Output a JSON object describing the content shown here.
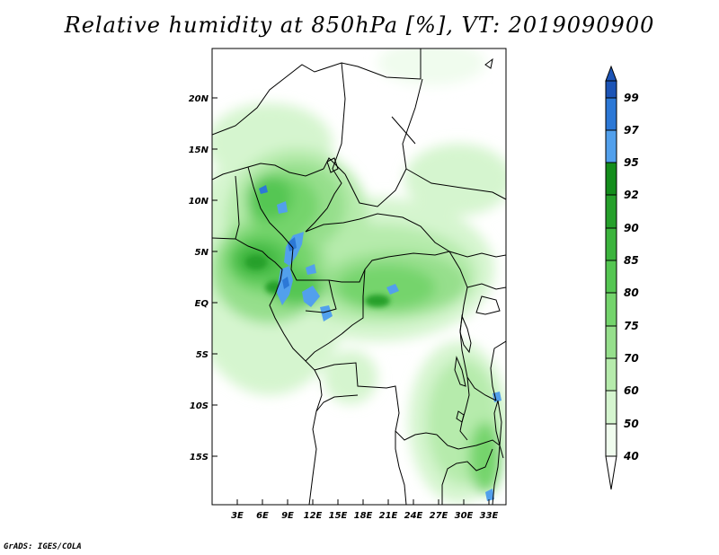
{
  "title": "Relative humidity at 850hPa [%], VT: 2019090900",
  "footer": "GrADS: IGES/COLA",
  "map": {
    "lat_labels": [
      "20N",
      "15N",
      "10N",
      "5N",
      "EQ",
      "5S",
      "10S",
      "15S"
    ],
    "lon_labels": [
      "3E",
      "6E",
      "9E",
      "12E",
      "15E",
      "18E",
      "21E",
      "24E",
      "27E",
      "30E",
      "33E"
    ]
  },
  "colorbar": {
    "levels": [
      "99",
      "97",
      "95",
      "92",
      "90",
      "85",
      "80",
      "75",
      "70",
      "60",
      "50",
      "40"
    ],
    "colors": {
      "lt40": "#ffffff",
      "40-50": "#f0fcee",
      "50-60": "#d5f5cf",
      "60-70": "#b6ebac",
      "70-75": "#96df8c",
      "75-80": "#74d46c",
      "80-85": "#55c652",
      "85-90": "#3cb43d",
      "90-92": "#26a02b",
      "92-95": "#148d1c",
      "95-97": "#52a0ec",
      "97-99": "#2c78d6",
      "gt99": "#1c54b6"
    }
  }
}
